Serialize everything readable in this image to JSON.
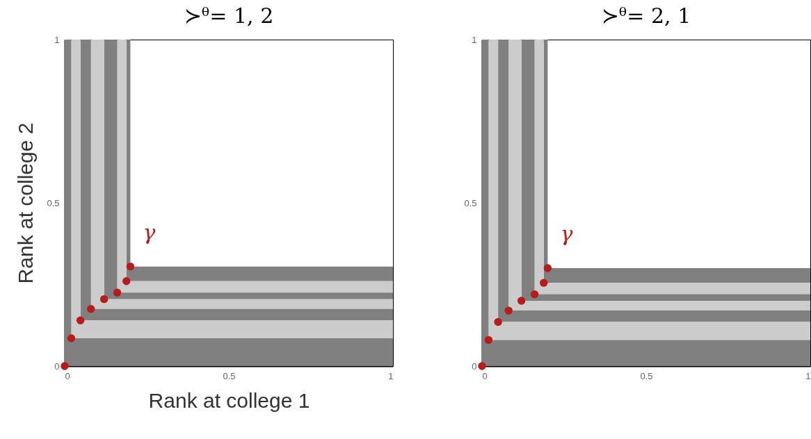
{
  "chart_data": [
    {
      "type": "area",
      "title": "≻ᶿ= 1, 2",
      "xlabel": "Rank at college 1",
      "ylabel": "Rank at college 2",
      "xlim": [
        0,
        1
      ],
      "ylim": [
        0,
        1
      ],
      "xticks": [
        0,
        0.5,
        1
      ],
      "yticks": [
        0,
        0.5,
        1
      ],
      "series": [
        {
          "color": "#808080",
          "x": [
            0.188,
            0.2,
            0.2,
            1
          ],
          "values": [
            1,
            1,
            0.305,
            0.305
          ]
        },
        {
          "color": "#cccccc",
          "x": [
            0.16,
            0.188,
            0.188,
            1
          ],
          "values": [
            1,
            1,
            0.26,
            0.26
          ]
        },
        {
          "color": "#808080",
          "x": [
            0.12,
            0.16,
            0.16,
            1
          ],
          "values": [
            1,
            1,
            0.225,
            0.225
          ]
        },
        {
          "color": "#cccccc",
          "x": [
            0.08,
            0.12,
            0.12,
            1
          ],
          "values": [
            1,
            1,
            0.205,
            0.205
          ]
        },
        {
          "color": "#808080",
          "x": [
            0.048,
            0.08,
            0.08,
            1
          ],
          "values": [
            1,
            1,
            0.175,
            0.175
          ]
        },
        {
          "color": "#cccccc",
          "x": [
            0.02,
            0.048,
            0.048,
            1
          ],
          "values": [
            1,
            1,
            0.14,
            0.14
          ]
        },
        {
          "color": "#808080",
          "x": [
            0,
            0.02,
            0.02,
            1
          ],
          "values": [
            1,
            1,
            0.085,
            0.085
          ]
        },
        {
          "type": "scatter",
          "marker": "circle",
          "color": "#b71c1c",
          "x": [
            0,
            0.02,
            0.048,
            0.08,
            0.12,
            0.16,
            0.188,
            0.2
          ],
          "values": [
            0,
            0.085,
            0.14,
            0.175,
            0.205,
            0.225,
            0.26,
            0.305
          ]
        }
      ],
      "annotations": [
        "γ"
      ]
    },
    {
      "type": "area",
      "title": "≻ᶿ= 2, 1",
      "xlim": [
        0,
        1
      ],
      "ylim": [
        0,
        1
      ],
      "xticks": [
        0,
        0.5,
        1
      ],
      "yticks": [
        0,
        0.5,
        1
      ],
      "series": [
        {
          "color": "#808080",
          "x": [
            0.188,
            0.2,
            0.2,
            1
          ],
          "values": [
            1,
            1,
            0.3,
            0.3
          ]
        },
        {
          "color": "#cccccc",
          "x": [
            0.16,
            0.188,
            0.188,
            1
          ],
          "values": [
            1,
            1,
            0.255,
            0.255
          ]
        },
        {
          "color": "#808080",
          "x": [
            0.12,
            0.16,
            0.16,
            1
          ],
          "values": [
            1,
            1,
            0.22,
            0.22
          ]
        },
        {
          "color": "#cccccc",
          "x": [
            0.081,
            0.12,
            0.12,
            1
          ],
          "values": [
            1,
            1,
            0.2,
            0.2
          ]
        },
        {
          "color": "#808080",
          "x": [
            0.049,
            0.081,
            0.081,
            1
          ],
          "values": [
            1,
            1,
            0.17,
            0.17
          ]
        },
        {
          "color": "#cccccc",
          "x": [
            0.02,
            0.049,
            0.049,
            1
          ],
          "values": [
            1,
            1,
            0.135,
            0.135
          ]
        },
        {
          "color": "#808080",
          "x": [
            0,
            0.02,
            0.02,
            1
          ],
          "values": [
            1,
            1,
            0.08,
            0.08
          ]
        },
        {
          "type": "scatter",
          "marker": "circle",
          "color": "#b71c1c",
          "x": [
            0,
            0.02,
            0.049,
            0.081,
            0.12,
            0.16,
            0.188,
            0.2
          ],
          "values": [
            0,
            0.08,
            0.135,
            0.17,
            0.2,
            0.22,
            0.255,
            0.3
          ]
        }
      ],
      "annotations": [
        "γ"
      ]
    }
  ]
}
